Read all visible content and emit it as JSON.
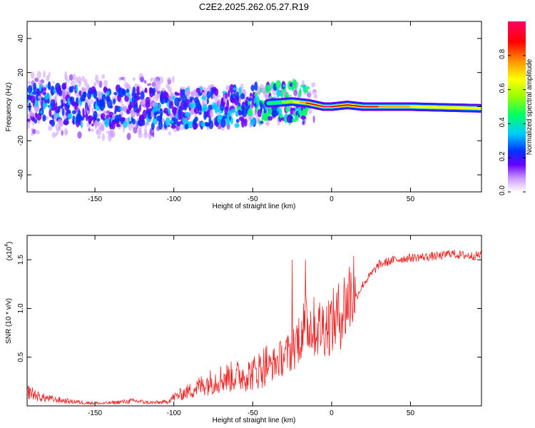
{
  "figure": {
    "title": "C2E2.2025.262.05.27.R19"
  },
  "chart_data": [
    {
      "type": "heatmap",
      "title": "C2E2.2025.262.05.27.R19",
      "xlabel": "Height of straight line (km)",
      "ylabel": "Frequency (Hz)",
      "xlim": [
        -193,
        95
      ],
      "ylim": [
        -50,
        50
      ],
      "x_ticks": [
        -150,
        -100,
        -50,
        0,
        50
      ],
      "y_ticks": [
        -40,
        -20,
        0,
        20,
        40
      ],
      "colorbar": {
        "label": "Normalized spectral amplitude",
        "range": [
          0.0,
          1.0
        ],
        "ticks": [
          "0.0",
          "0.2",
          "0.4",
          "0.6",
          "0.8"
        ],
        "tick_values": [
          0.0,
          0.2,
          0.4,
          0.6,
          0.8
        ],
        "colormap": [
          "#ffffff",
          "#cc99ff",
          "#6600ff",
          "#0033ff",
          "#00ccff",
          "#00ff66",
          "#99ff00",
          "#ffff00",
          "#ff9900",
          "#ff0000",
          "#ff0066"
        ]
      },
      "ridge": {
        "description_x": [
          -193,
          -150,
          -100,
          -60,
          -40,
          -25,
          -15,
          -5,
          0,
          10,
          20,
          50,
          95
        ],
        "center_freq": [
          2,
          0,
          -1,
          0,
          2,
          3,
          2,
          0,
          0,
          1,
          0,
          0,
          -1
        ],
        "amplitude": [
          0.3,
          0.25,
          0.3,
          0.35,
          0.45,
          0.6,
          0.85,
          0.95,
          0.95,
          0.9,
          0.9,
          0.75,
          0.7
        ]
      }
    },
    {
      "type": "line",
      "xlabel": "Height of straight line (km)",
      "ylabel": "SNR (10 * v/v)",
      "scale_label": "(x10",
      "scale_exp": "4",
      "xlim": [
        -193,
        95
      ],
      "ylim": [
        0,
        17500
      ],
      "x_ticks": [
        -150,
        -100,
        -50,
        0,
        50
      ],
      "y_ticks": [
        "0.5",
        "1.0",
        "1.5"
      ],
      "y_tick_values": [
        5000,
        10000,
        15000
      ],
      "series": [
        {
          "name": "SNR",
          "color": "#ee2222",
          "x": [
            -193,
            -185,
            -175,
            -165,
            -155,
            -145,
            -135,
            -125,
            -115,
            -105,
            -100,
            -90,
            -80,
            -70,
            -60,
            -50,
            -45,
            -40,
            -35,
            -30,
            -25,
            -20,
            -15,
            -10,
            -5,
            0,
            5,
            10,
            15,
            20,
            25,
            30,
            40,
            50,
            60,
            70,
            75,
            80,
            90,
            95
          ],
          "y": [
            1200,
            700,
            500,
            350,
            250,
            200,
            300,
            400,
            250,
            300,
            700,
            1200,
            1800,
            2200,
            2400,
            2600,
            3000,
            3500,
            4000,
            4500,
            5000,
            6500,
            7500,
            7000,
            7200,
            7500,
            8200,
            9500,
            11000,
            12500,
            13500,
            14500,
            15000,
            15200,
            15300,
            15400,
            15700,
            15500,
            15400,
            15500
          ]
        }
      ]
    }
  ]
}
